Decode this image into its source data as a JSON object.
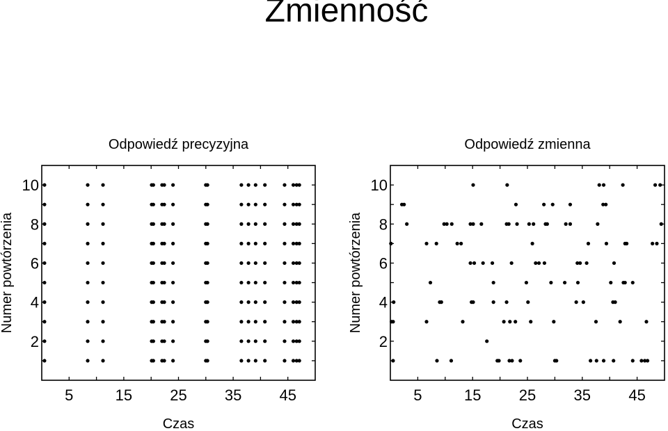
{
  "title": "Zmienność",
  "chart_data": [
    {
      "type": "scatter",
      "title": "Odpowiedź precyzyjna",
      "xlabel": "Czas",
      "ylabel": "Numer powtórzenia",
      "xlim": [
        0,
        50
      ],
      "ylim": [
        0,
        11
      ],
      "xticks": [
        5,
        15,
        25,
        35,
        45
      ],
      "yticks": [
        2,
        4,
        6,
        8,
        10
      ],
      "points_by_trial": [
        {
          "trial": 1,
          "x": [
            0.5,
            8.4,
            11.2,
            20.1,
            20.4,
            22.0,
            22.4,
            24.0,
            30.0,
            30.3,
            36.5,
            37.8,
            39.1,
            40.8,
            44.4,
            46.0,
            46.6,
            47.1
          ]
        },
        {
          "trial": 2,
          "x": [
            0.5,
            8.4,
            11.2,
            20.1,
            20.4,
            22.0,
            22.4,
            24.0,
            30.0,
            30.3,
            36.5,
            37.8,
            39.1,
            40.8,
            44.4,
            46.0,
            46.6,
            47.1
          ]
        },
        {
          "trial": 3,
          "x": [
            0.5,
            8.4,
            11.2,
            20.1,
            20.4,
            22.0,
            22.4,
            24.0,
            30.0,
            30.3,
            36.5,
            37.8,
            39.1,
            40.8,
            44.4,
            46.0,
            46.6,
            47.1
          ]
        },
        {
          "trial": 4,
          "x": [
            0.5,
            8.4,
            11.2,
            20.1,
            20.4,
            22.0,
            22.4,
            24.0,
            30.0,
            30.3,
            36.5,
            37.8,
            39.1,
            40.8,
            44.4,
            46.0,
            46.6,
            47.1
          ]
        },
        {
          "trial": 5,
          "x": [
            0.5,
            8.4,
            11.2,
            20.1,
            20.4,
            22.0,
            22.4,
            24.0,
            30.0,
            30.3,
            36.5,
            37.8,
            39.1,
            40.8,
            44.4,
            46.0,
            46.6,
            47.1
          ]
        },
        {
          "trial": 6,
          "x": [
            0.5,
            8.4,
            11.2,
            20.1,
            20.4,
            22.0,
            22.4,
            24.0,
            30.0,
            30.3,
            36.5,
            37.8,
            39.1,
            40.8,
            44.4,
            46.0,
            46.6,
            47.1
          ]
        },
        {
          "trial": 7,
          "x": [
            0.5,
            8.4,
            11.2,
            20.1,
            20.4,
            22.0,
            22.4,
            24.0,
            30.0,
            30.3,
            36.5,
            37.8,
            39.1,
            40.8,
            44.4,
            46.0,
            46.6,
            47.1
          ]
        },
        {
          "trial": 8,
          "x": [
            0.5,
            8.4,
            11.2,
            20.1,
            20.4,
            22.0,
            22.4,
            24.0,
            30.0,
            30.3,
            36.5,
            37.8,
            39.1,
            40.8,
            44.4,
            46.0,
            46.6,
            47.1
          ]
        },
        {
          "trial": 9,
          "x": [
            0.5,
            8.4,
            11.2,
            20.1,
            20.4,
            22.0,
            22.4,
            24.0,
            30.0,
            30.3,
            36.5,
            37.8,
            39.1,
            40.8,
            44.4,
            46.0,
            46.6,
            47.1
          ]
        },
        {
          "trial": 10,
          "x": [
            0.5,
            8.4,
            11.2,
            20.1,
            20.4,
            22.0,
            22.4,
            24.0,
            30.0,
            30.3,
            36.5,
            37.8,
            39.1,
            40.8,
            44.4,
            46.0,
            46.6,
            47.1
          ]
        }
      ]
    },
    {
      "type": "scatter",
      "title": "Odpowiedź zmienna",
      "xlabel": "Czas",
      "ylabel": "Numer powtórzenia",
      "xlim": [
        0,
        50
      ],
      "ylim": [
        0,
        11
      ],
      "xticks": [
        5,
        15,
        25,
        35,
        45
      ],
      "yticks": [
        2,
        4,
        6,
        8,
        10
      ],
      "points_by_trial": [
        {
          "trial": 1,
          "x": [
            0.5,
            8.5,
            11.1,
            19.5,
            19.8,
            21.7,
            22.2,
            23.7,
            30.0,
            30.3,
            36.5,
            37.6,
            38.9,
            40.7,
            44.2,
            45.8,
            46.4,
            46.9
          ]
        },
        {
          "trial": 2,
          "x": [
            17.6
          ]
        },
        {
          "trial": 3,
          "x": [
            0.2,
            0.5,
            6.6,
            13.2,
            20.7,
            21.8,
            22.8,
            25.6,
            29.8,
            37.5,
            41.9,
            46.7
          ]
        },
        {
          "trial": 4,
          "x": [
            0.6,
            9.0,
            9.3,
            14.8,
            15.1,
            18.8,
            21.2,
            25.1,
            33.9,
            35.2,
            40.6,
            41.0
          ]
        },
        {
          "trial": 5,
          "x": [
            7.3,
            18.8,
            24.8,
            29.3,
            31.8,
            34.2,
            40.2,
            42.5,
            42.8,
            44.2
          ]
        },
        {
          "trial": 6,
          "x": [
            14.6,
            15.3,
            16.9,
            18.6,
            22.1,
            26.5,
            27.1,
            28.1,
            34.1,
            34.6,
            35.8,
            40.8
          ]
        },
        {
          "trial": 7,
          "x": [
            0.1,
            6.6,
            8.4,
            12.2,
            12.9,
            25.9,
            36.1,
            39.4,
            42.8,
            43.1,
            47.8,
            48.6
          ]
        },
        {
          "trial": 8,
          "x": [
            3.0,
            9.8,
            10.3,
            11.2,
            14.6,
            15.1,
            16.6,
            21.2,
            21.6,
            23.1,
            25.3,
            26.1,
            28.3,
            28.6,
            32.0,
            32.8,
            37.8,
            49.4
          ]
        },
        {
          "trial": 9,
          "x": [
            2.1,
            2.5,
            22.9,
            28.0,
            29.6,
            32.8,
            38.8,
            39.3
          ]
        },
        {
          "trial": 10,
          "x": [
            15.1,
            21.3,
            38.1,
            38.9,
            42.4,
            48.3,
            49.2
          ]
        }
      ]
    }
  ]
}
